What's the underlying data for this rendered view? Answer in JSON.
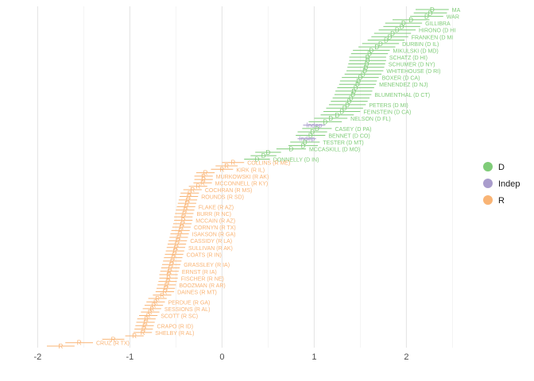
{
  "chart_data": {
    "type": "scatter",
    "title": "",
    "xlabel": "",
    "ylabel": "",
    "xlim": [
      -2.15,
      2.6
    ],
    "x_ticks": [
      -2,
      -1,
      0,
      1,
      2
    ],
    "grid": true,
    "legend_position": "right",
    "colors": {
      "D": "#7fcc78",
      "Indep": "#a99ccc",
      "R": "#f9b475"
    },
    "legend": [
      {
        "key": "D",
        "label": "D"
      },
      {
        "key": "Indep",
        "label": "Indep"
      },
      {
        "key": "R",
        "label": "R"
      }
    ],
    "senators": [
      {
        "party": "D",
        "label": "MARKEY (D MA)",
        "mark": "D",
        "x": 2.28,
        "ci": 0.18,
        "show_label": true,
        "display": "MA"
      },
      {
        "party": "D",
        "label": "",
        "mark": "D",
        "x": 2.26,
        "ci": 0.18,
        "show_label": false
      },
      {
        "party": "D",
        "label": "WARREN (D MA)",
        "mark": "D",
        "x": 2.22,
        "ci": 0.18,
        "show_label": true,
        "display": "WAR"
      },
      {
        "party": "D",
        "label": "",
        "mark": "D",
        "x": 2.05,
        "ci": 0.2,
        "show_label": false
      },
      {
        "party": "D",
        "label": "GILLIBRAND (D NY)",
        "mark": "D",
        "x": 1.97,
        "ci": 0.2,
        "show_label": true,
        "display": "GILLIBRA"
      },
      {
        "party": "D",
        "label": "",
        "mark": "D",
        "x": 1.95,
        "ci": 0.2,
        "show_label": false
      },
      {
        "party": "D",
        "label": "HIRONO (D HI)",
        "mark": "D",
        "x": 1.9,
        "ci": 0.2,
        "show_label": true,
        "display": "HIRONO (D HI"
      },
      {
        "party": "D",
        "label": "",
        "mark": "D",
        "x": 1.85,
        "ci": 0.2,
        "show_label": false
      },
      {
        "party": "D",
        "label": "FRANKEN (D MN)",
        "mark": "D",
        "x": 1.82,
        "ci": 0.2,
        "show_label": true,
        "display": "FRANKEN (D MI"
      },
      {
        "party": "D",
        "label": "",
        "mark": "D",
        "x": 1.78,
        "ci": 0.2,
        "show_label": false
      },
      {
        "party": "D",
        "label": "DURBIN (D IL)",
        "mark": "D",
        "x": 1.72,
        "ci": 0.2,
        "show_label": true
      },
      {
        "party": "D",
        "label": "",
        "mark": "D",
        "x": 1.68,
        "ci": 0.2,
        "show_label": false
      },
      {
        "party": "D",
        "label": "MIKULSKI (D MD)",
        "mark": "D",
        "x": 1.62,
        "ci": 0.2,
        "show_label": true
      },
      {
        "party": "D",
        "label": "",
        "mark": "D",
        "x": 1.6,
        "ci": 0.2,
        "show_label": false
      },
      {
        "party": "D",
        "label": "SCHATZ (D HI)",
        "mark": "D",
        "x": 1.58,
        "ci": 0.2,
        "show_label": true
      },
      {
        "party": "D",
        "label": "",
        "mark": "D",
        "x": 1.58,
        "ci": 0.2,
        "show_label": false
      },
      {
        "party": "D",
        "label": "SCHUMER (D NY)",
        "mark": "D",
        "x": 1.57,
        "ci": 0.2,
        "show_label": true
      },
      {
        "party": "D",
        "label": "",
        "mark": "D",
        "x": 1.56,
        "ci": 0.2,
        "show_label": false
      },
      {
        "party": "D",
        "label": "WHITEHOUSE (D RI)",
        "mark": "D",
        "x": 1.55,
        "ci": 0.2,
        "show_label": true
      },
      {
        "party": "D",
        "label": "",
        "mark": "D",
        "x": 1.53,
        "ci": 0.2,
        "show_label": false
      },
      {
        "party": "D",
        "label": "BOXER (D CA)",
        "mark": "D",
        "x": 1.5,
        "ci": 0.2,
        "show_label": true
      },
      {
        "party": "D",
        "label": "",
        "mark": "D",
        "x": 1.48,
        "ci": 0.2,
        "show_label": false
      },
      {
        "party": "D",
        "label": "MENENDEZ (D NJ)",
        "mark": "D",
        "x": 1.47,
        "ci": 0.2,
        "show_label": true
      },
      {
        "party": "D",
        "label": "",
        "mark": "D",
        "x": 1.45,
        "ci": 0.2,
        "show_label": false
      },
      {
        "party": "D",
        "label": "",
        "mark": "D",
        "x": 1.43,
        "ci": 0.2,
        "show_label": false
      },
      {
        "party": "D",
        "label": "BLUMENTHAL (D CT)",
        "mark": "D",
        "x": 1.42,
        "ci": 0.2,
        "show_label": true
      },
      {
        "party": "D",
        "label": "",
        "mark": "D",
        "x": 1.4,
        "ci": 0.2,
        "show_label": false
      },
      {
        "party": "D",
        "label": "",
        "mark": "D",
        "x": 1.38,
        "ci": 0.2,
        "show_label": false
      },
      {
        "party": "D",
        "label": "PETERS (D MI)",
        "mark": "D",
        "x": 1.36,
        "ci": 0.2,
        "show_label": true
      },
      {
        "party": "D",
        "label": "",
        "mark": "D",
        "x": 1.33,
        "ci": 0.2,
        "show_label": false
      },
      {
        "party": "D",
        "label": "FEINSTEIN (D CA)",
        "mark": "D",
        "x": 1.3,
        "ci": 0.2,
        "show_label": true
      },
      {
        "party": "D",
        "label": "",
        "mark": "D",
        "x": 1.25,
        "ci": 0.18,
        "show_label": false
      },
      {
        "party": "D",
        "label": "NELSON (D FL)",
        "mark": "D",
        "x": 1.18,
        "ci": 0.18,
        "show_label": true
      },
      {
        "party": "D",
        "label": "",
        "mark": "D",
        "x": 1.12,
        "ci": 0.18,
        "show_label": false
      },
      {
        "party": "Indep",
        "label": "",
        "mark": "Indep",
        "x": 1.0,
        "ci": 0.12,
        "show_label": false
      },
      {
        "party": "D",
        "label": "CASEY (D PA)",
        "mark": "D",
        "x": 1.03,
        "ci": 0.16,
        "show_label": true
      },
      {
        "party": "D",
        "label": "",
        "mark": "D",
        "x": 0.98,
        "ci": 0.16,
        "show_label": false
      },
      {
        "party": "D",
        "label": "BENNET (D CO)",
        "mark": "D",
        "x": 0.96,
        "ci": 0.16,
        "show_label": true
      },
      {
        "party": "Indep",
        "label": "",
        "mark": "Indep",
        "x": 0.92,
        "ci": 0.1,
        "show_label": false
      },
      {
        "party": "D",
        "label": "TESTER (D MT)",
        "mark": "D",
        "x": 0.9,
        "ci": 0.16,
        "show_label": true
      },
      {
        "party": "D",
        "label": "",
        "mark": "D",
        "x": 0.88,
        "ci": 0.16,
        "show_label": false
      },
      {
        "party": "D",
        "label": "MCCASKILL (D MO)",
        "mark": "D",
        "x": 0.75,
        "ci": 0.16,
        "show_label": true
      },
      {
        "party": "D",
        "label": "",
        "mark": "D",
        "x": 0.5,
        "ci": 0.14,
        "show_label": false
      },
      {
        "party": "D",
        "label": "",
        "mark": "D",
        "x": 0.45,
        "ci": 0.14,
        "show_label": false
      },
      {
        "party": "D",
        "label": "DONNELLY (D IN)",
        "mark": "D",
        "x": 0.38,
        "ci": 0.14,
        "show_label": true
      },
      {
        "party": "R",
        "label": "COLLINS (R ME)",
        "mark": "R",
        "x": 0.12,
        "ci": 0.12,
        "show_label": true
      },
      {
        "party": "R",
        "label": "",
        "mark": "R",
        "x": 0.05,
        "ci": 0.12,
        "show_label": false
      },
      {
        "party": "R",
        "label": "KIRK (R IL)",
        "mark": "R",
        "x": 0.0,
        "ci": 0.12,
        "show_label": true
      },
      {
        "party": "R",
        "label": "",
        "mark": "R",
        "x": -0.18,
        "ci": 0.1,
        "show_label": false
      },
      {
        "party": "R",
        "label": "MURKOWSKI (R AK)",
        "mark": "R",
        "x": -0.2,
        "ci": 0.1,
        "show_label": true
      },
      {
        "party": "R",
        "label": "",
        "mark": "R",
        "x": -0.2,
        "ci": 0.1,
        "show_label": false
      },
      {
        "party": "R",
        "label": "MCCONNELL (R KY)",
        "mark": "R",
        "x": -0.21,
        "ci": 0.1,
        "show_label": true
      },
      {
        "party": "R",
        "label": "",
        "mark": "R",
        "x": -0.26,
        "ci": 0.1,
        "show_label": false
      },
      {
        "party": "R",
        "label": "COCHRAN (R MS)",
        "mark": "R",
        "x": -0.32,
        "ci": 0.1,
        "show_label": true
      },
      {
        "party": "R",
        "label": "",
        "mark": "R",
        "x": -0.35,
        "ci": 0.1,
        "show_label": false
      },
      {
        "party": "R",
        "label": "ROUNDS (R SD)",
        "mark": "R",
        "x": -0.36,
        "ci": 0.1,
        "show_label": true
      },
      {
        "party": "R",
        "label": "",
        "mark": "R",
        "x": -0.37,
        "ci": 0.1,
        "show_label": false
      },
      {
        "party": "R",
        "label": "",
        "mark": "R",
        "x": -0.38,
        "ci": 0.1,
        "show_label": false
      },
      {
        "party": "R",
        "label": "FLAKE (R AZ)",
        "mark": "R",
        "x": -0.39,
        "ci": 0.1,
        "show_label": true
      },
      {
        "party": "R",
        "label": "",
        "mark": "R",
        "x": -0.4,
        "ci": 0.1,
        "show_label": false
      },
      {
        "party": "R",
        "label": "BURR (R NC)",
        "mark": "R",
        "x": -0.41,
        "ci": 0.1,
        "show_label": true
      },
      {
        "party": "R",
        "label": "",
        "mark": "R",
        "x": -0.42,
        "ci": 0.1,
        "show_label": false
      },
      {
        "party": "R",
        "label": "MCCAIN (R AZ)",
        "mark": "R",
        "x": -0.42,
        "ci": 0.1,
        "show_label": true
      },
      {
        "party": "R",
        "label": "",
        "mark": "R",
        "x": -0.43,
        "ci": 0.1,
        "show_label": false
      },
      {
        "party": "R",
        "label": "CORNYN (R TX)",
        "mark": "R",
        "x": -0.44,
        "ci": 0.1,
        "show_label": true
      },
      {
        "party": "R",
        "label": "",
        "mark": "R",
        "x": -0.45,
        "ci": 0.1,
        "show_label": false
      },
      {
        "party": "R",
        "label": "ISAKSON (R GA)",
        "mark": "R",
        "x": -0.46,
        "ci": 0.1,
        "show_label": true
      },
      {
        "party": "R",
        "label": "",
        "mark": "R",
        "x": -0.47,
        "ci": 0.1,
        "show_label": false
      },
      {
        "party": "R",
        "label": "CASSIDY (R LA)",
        "mark": "R",
        "x": -0.48,
        "ci": 0.1,
        "show_label": true
      },
      {
        "party": "R",
        "label": "",
        "mark": "R",
        "x": -0.49,
        "ci": 0.1,
        "show_label": false
      },
      {
        "party": "R",
        "label": "SULLIVAN (R AK)",
        "mark": "R",
        "x": -0.5,
        "ci": 0.1,
        "show_label": true
      },
      {
        "party": "R",
        "label": "",
        "mark": "R",
        "x": -0.51,
        "ci": 0.1,
        "show_label": false
      },
      {
        "party": "R",
        "label": "COATS (R IN)",
        "mark": "R",
        "x": -0.52,
        "ci": 0.1,
        "show_label": true
      },
      {
        "party": "R",
        "label": "",
        "mark": "R",
        "x": -0.53,
        "ci": 0.1,
        "show_label": false
      },
      {
        "party": "R",
        "label": "",
        "mark": "R",
        "x": -0.54,
        "ci": 0.1,
        "show_label": false
      },
      {
        "party": "R",
        "label": "GRASSLEY (R IA)",
        "mark": "R",
        "x": -0.55,
        "ci": 0.1,
        "show_label": true
      },
      {
        "party": "R",
        "label": "",
        "mark": "R",
        "x": -0.56,
        "ci": 0.1,
        "show_label": false
      },
      {
        "party": "R",
        "label": "ERNST (R IA)",
        "mark": "R",
        "x": -0.57,
        "ci": 0.1,
        "show_label": true
      },
      {
        "party": "R",
        "label": "",
        "mark": "R",
        "x": -0.58,
        "ci": 0.1,
        "show_label": false
      },
      {
        "party": "R",
        "label": "FISCHER (R NE)",
        "mark": "R",
        "x": -0.58,
        "ci": 0.1,
        "show_label": true
      },
      {
        "party": "R",
        "label": "",
        "mark": "R",
        "x": -0.59,
        "ci": 0.1,
        "show_label": false
      },
      {
        "party": "R",
        "label": "BOOZMAN (R AR)",
        "mark": "R",
        "x": -0.6,
        "ci": 0.1,
        "show_label": true
      },
      {
        "party": "R",
        "label": "",
        "mark": "R",
        "x": -0.61,
        "ci": 0.1,
        "show_label": false
      },
      {
        "party": "R",
        "label": "DAINES (R MT)",
        "mark": "R",
        "x": -0.62,
        "ci": 0.1,
        "show_label": true
      },
      {
        "party": "R",
        "label": "",
        "mark": "R",
        "x": -0.65,
        "ci": 0.1,
        "show_label": false
      },
      {
        "party": "R",
        "label": "",
        "mark": "R",
        "x": -0.7,
        "ci": 0.1,
        "show_label": false
      },
      {
        "party": "R",
        "label": "PERDUE (R GA)",
        "mark": "R",
        "x": -0.72,
        "ci": 0.1,
        "show_label": true
      },
      {
        "party": "R",
        "label": "",
        "mark": "R",
        "x": -0.74,
        "ci": 0.1,
        "show_label": false
      },
      {
        "party": "R",
        "label": "SESSIONS (R AL)",
        "mark": "R",
        "x": -0.76,
        "ci": 0.1,
        "show_label": true
      },
      {
        "party": "R",
        "label": "",
        "mark": "R",
        "x": -0.78,
        "ci": 0.1,
        "show_label": false
      },
      {
        "party": "R",
        "label": "SCOTT (R SC)",
        "mark": "R",
        "x": -0.8,
        "ci": 0.1,
        "show_label": true
      },
      {
        "party": "R",
        "label": "",
        "mark": "R",
        "x": -0.82,
        "ci": 0.1,
        "show_label": false
      },
      {
        "party": "R",
        "label": "",
        "mark": "R",
        "x": -0.83,
        "ci": 0.1,
        "show_label": false
      },
      {
        "party": "R",
        "label": "CRAPO (R ID)",
        "mark": "R",
        "x": -0.84,
        "ci": 0.1,
        "show_label": true
      },
      {
        "party": "R",
        "label": "",
        "mark": "R",
        "x": -0.85,
        "ci": 0.1,
        "show_label": false
      },
      {
        "party": "R",
        "label": "SHELBY (R AL)",
        "mark": "R",
        "x": -0.86,
        "ci": 0.1,
        "show_label": true
      },
      {
        "party": "R",
        "label": "",
        "mark": "R",
        "x": -0.95,
        "ci": 0.1,
        "show_label": false
      },
      {
        "party": "R",
        "label": "",
        "mark": "R",
        "x": -1.18,
        "ci": 0.12,
        "show_label": false
      },
      {
        "party": "R",
        "label": "CRUZ (R TX)",
        "mark": "R",
        "x": -1.55,
        "ci": 0.15,
        "show_label": true
      },
      {
        "party": "R",
        "label": "",
        "mark": "R",
        "x": -1.75,
        "ci": 0.15,
        "show_label": false
      }
    ]
  }
}
